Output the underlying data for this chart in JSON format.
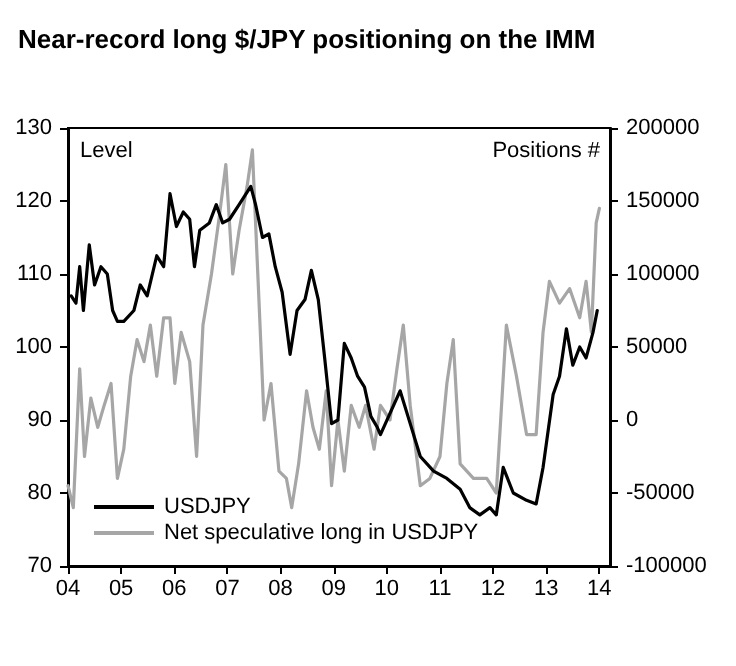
{
  "chart_data": {
    "type": "line",
    "title": "Near-record long $/JPY positioning on the IMM",
    "ylabel": "Level",
    "y2label": "Positions #",
    "xlim": [
      2004,
      2014.2
    ],
    "xticks": [
      {
        "value": 2004,
        "label": "04"
      },
      {
        "value": 2005,
        "label": "05"
      },
      {
        "value": 2006,
        "label": "06"
      },
      {
        "value": 2007,
        "label": "07"
      },
      {
        "value": 2008,
        "label": "08"
      },
      {
        "value": 2009,
        "label": "09"
      },
      {
        "value": 2010,
        "label": "10"
      },
      {
        "value": 2011,
        "label": "11"
      },
      {
        "value": 2012,
        "label": "12"
      },
      {
        "value": 2013,
        "label": "13"
      },
      {
        "value": 2014,
        "label": "14"
      }
    ],
    "ylim": [
      70,
      130
    ],
    "yticks": [
      70,
      80,
      90,
      100,
      110,
      120,
      130
    ],
    "y2lim": [
      -100000,
      200000
    ],
    "y2ticks": [
      -100000,
      -50000,
      0,
      50000,
      100000,
      150000,
      200000
    ],
    "grid": false,
    "legend": "bottom left",
    "series": [
      {
        "name": "USDJPY",
        "color": "#000000",
        "x": [
          2004.06,
          2004.15,
          2004.22,
          2004.29,
          2004.4,
          2004.5,
          2004.62,
          2004.74,
          2004.84,
          2004.93,
          2005.05,
          2005.24,
          2005.36,
          2005.49,
          2005.67,
          2005.8,
          2005.92,
          2006.04,
          2006.17,
          2006.29,
          2006.38,
          2006.48,
          2006.66,
          2006.79,
          2006.91,
          2007.04,
          2007.22,
          2007.44,
          2007.53,
          2007.66,
          2007.78,
          2007.9,
          2008.03,
          2008.18,
          2008.31,
          2008.46,
          2008.58,
          2008.71,
          2008.83,
          2008.96,
          2009.08,
          2009.2,
          2009.33,
          2009.45,
          2009.58,
          2009.7,
          2009.82,
          2009.88,
          2010.25,
          2010.44,
          2010.63,
          2010.88,
          2011.13,
          2011.38,
          2011.56,
          2011.75,
          2011.94,
          2012.06,
          2012.19,
          2012.38,
          2012.63,
          2012.81,
          2012.94,
          2013.13,
          2013.25,
          2013.38,
          2013.5,
          2013.63,
          2013.75,
          2013.88,
          2013.96
        ],
        "values": [
          107,
          106,
          111,
          105,
          114,
          108.5,
          111,
          110,
          105,
          103.5,
          103.5,
          105,
          108.5,
          107,
          112.5,
          111,
          121,
          116.5,
          118.5,
          117.5,
          111,
          116,
          117,
          119.5,
          117,
          117.5,
          119.5,
          122,
          119.5,
          115,
          115.5,
          111,
          107.5,
          99,
          105,
          106.5,
          110.5,
          106.5,
          98.5,
          89.5,
          90,
          100.5,
          98.5,
          96,
          94.5,
          90.5,
          89,
          88,
          94,
          89.5,
          85,
          83,
          82,
          80.5,
          78,
          77,
          78,
          77,
          83.5,
          80,
          79,
          78.5,
          83.5,
          93.5,
          96,
          102.5,
          97.5,
          100,
          98.5,
          102,
          105
        ]
      },
      {
        "name": "Net speculative long in USDJPY",
        "color": "#a6a6a6",
        "axis": "y2",
        "x": [
          2004.0,
          2004.1,
          2004.22,
          2004.31,
          2004.43,
          2004.56,
          2004.68,
          2004.81,
          2004.93,
          2005.05,
          2005.18,
          2005.3,
          2005.43,
          2005.55,
          2005.67,
          2005.8,
          2005.92,
          2006.01,
          2006.13,
          2006.29,
          2006.42,
          2006.54,
          2006.7,
          2006.85,
          2006.97,
          2007.1,
          2007.22,
          2007.37,
          2007.47,
          2007.59,
          2007.69,
          2007.82,
          2007.97,
          2008.11,
          2008.21,
          2008.34,
          2008.49,
          2008.61,
          2008.73,
          2008.86,
          2008.96,
          2009.08,
          2009.2,
          2009.33,
          2009.48,
          2009.6,
          2009.76,
          2009.88,
          2010.06,
          2010.19,
          2010.31,
          2010.44,
          2010.63,
          2010.81,
          2011.0,
          2011.13,
          2011.25,
          2011.38,
          2011.63,
          2011.88,
          2012.06,
          2012.25,
          2012.44,
          2012.63,
          2012.81,
          2012.94,
          2013.06,
          2013.25,
          2013.44,
          2013.63,
          2013.75,
          2013.85,
          2013.94,
          2014.0
        ],
        "values": [
          -45000,
          -60000,
          35000,
          -25000,
          15000,
          -5000,
          10000,
          25000,
          -40000,
          -20000,
          30000,
          55000,
          40000,
          65000,
          30000,
          70000,
          70000,
          25000,
          60000,
          40000,
          -25000,
          65000,
          100000,
          140000,
          175000,
          100000,
          130000,
          160000,
          185000,
          85000,
          0,
          25000,
          -35000,
          -40000,
          -60000,
          -30000,
          20000,
          -5000,
          -20000,
          20000,
          -45000,
          0,
          -35000,
          10000,
          -5000,
          10000,
          -20000,
          10000,
          0,
          35000,
          65000,
          10000,
          -45000,
          -40000,
          -25000,
          25000,
          55000,
          -30000,
          -40000,
          -40000,
          -50000,
          65000,
          30000,
          -10000,
          -10000,
          60000,
          95000,
          80000,
          90000,
          70000,
          95000,
          60000,
          135000,
          145000
        ]
      }
    ]
  }
}
